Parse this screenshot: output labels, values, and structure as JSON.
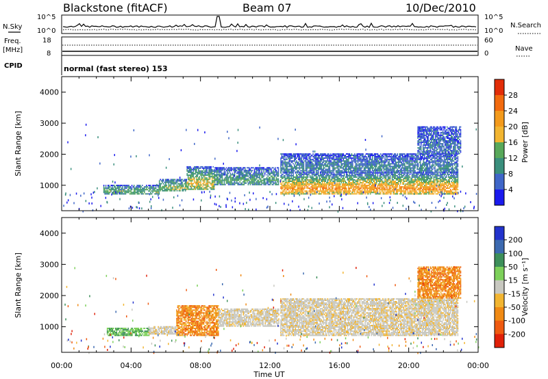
{
  "header": {
    "station": "Blackstone (fitACF)",
    "beam": "Beam 07",
    "date": "10/Dec/2010"
  },
  "noise_panel": {
    "left_label": "N.Sky",
    "right_label": "N.Search",
    "ticks": [
      "10^5",
      "10^0"
    ]
  },
  "freq_panel": {
    "left_label_1": "Freq.",
    "left_label_2": "[MHz]",
    "left_ticks": [
      "18",
      "8"
    ],
    "right_label": "Nave",
    "right_ticks": [
      "60",
      "0"
    ]
  },
  "cpid": {
    "label": "CPID",
    "mode": "normal (fast stereo) 153"
  },
  "chart_data": [
    {
      "type": "heatmap",
      "title": "",
      "xlabel": "",
      "ylabel": "Slant Range [km]",
      "xlim": [
        0,
        24
      ],
      "ylim": [
        180,
        4500
      ],
      "y_ticks": [
        "1000",
        "2000",
        "3000",
        "4000"
      ],
      "colorbar": {
        "label": "Power [dB]",
        "ticks": [
          "4",
          "8",
          "12",
          "16",
          "20",
          "24",
          "28"
        ],
        "range": [
          0,
          30
        ],
        "colors": [
          "#1a1aee",
          "#3f66c8",
          "#3a8f7d",
          "#58a85a",
          "#f2b531",
          "#f39a1c",
          "#f26a0e",
          "#e22d08"
        ]
      },
      "bands": [
        {
          "t_start": 2.4,
          "t_end": 5.6,
          "r_low": 700,
          "r_high": 1000,
          "level": 0.3
        },
        {
          "t_start": 5.6,
          "t_end": 7.2,
          "r_low": 800,
          "r_high": 1200,
          "level": 0.35
        },
        {
          "t_start": 7.2,
          "t_end": 8.8,
          "r_low": 850,
          "r_high": 1600,
          "level": 0.45
        },
        {
          "t_start": 8.8,
          "t_end": 12.5,
          "r_low": 1000,
          "r_high": 1550,
          "level": 0.25
        },
        {
          "t_start": 12.6,
          "t_end": 22.8,
          "r_low": 700,
          "r_high": 1400,
          "level": 0.6
        },
        {
          "t_start": 12.6,
          "t_end": 22.8,
          "r_low": 1400,
          "r_high": 2000,
          "level": 0.15
        },
        {
          "t_start": 20.5,
          "t_end": 23.0,
          "r_low": 2000,
          "r_high": 2900,
          "level": 0.1
        }
      ]
    },
    {
      "type": "heatmap",
      "title": "",
      "xlabel": "Time UT",
      "ylabel": "Slant Range [km]",
      "xlim": [
        0,
        24
      ],
      "ylim": [
        180,
        4500
      ],
      "x_ticks": [
        "00:00",
        "04:00",
        "08:00",
        "12:00",
        "16:00",
        "20:00",
        "00:00"
      ],
      "y_ticks": [
        "1000",
        "2000",
        "3000",
        "4000"
      ],
      "colorbar": {
        "label": "Velocity [m s⁻¹]",
        "ticks": [
          "200",
          "100",
          "50",
          "15",
          "-15",
          "-50",
          "-100",
          "-200"
        ],
        "range": [
          -250,
          250
        ],
        "colors": [
          "#2233cc",
          "#3c6ab0",
          "#3d8f5a",
          "#7dd05a",
          "#c8c8c0",
          "#f2b531",
          "#f08a14",
          "#ef5a10",
          "#e02008"
        ]
      },
      "bands": [
        {
          "t_start": 2.6,
          "t_end": 5.0,
          "r_low": 700,
          "r_high": 950,
          "level": "green"
        },
        {
          "t_start": 5.0,
          "t_end": 6.6,
          "r_low": 750,
          "r_high": 1000,
          "level": "grey"
        },
        {
          "t_start": 6.6,
          "t_end": 9.0,
          "r_low": 700,
          "r_high": 1650,
          "level": "orange"
        },
        {
          "t_start": 9.0,
          "t_end": 12.5,
          "r_low": 1000,
          "r_high": 1550,
          "level": "grey"
        },
        {
          "t_start": 12.6,
          "t_end": 22.8,
          "r_low": 700,
          "r_high": 1900,
          "level": "grey"
        },
        {
          "t_start": 20.5,
          "t_end": 23.0,
          "r_low": 1900,
          "r_high": 2900,
          "level": "orange"
        }
      ]
    }
  ]
}
